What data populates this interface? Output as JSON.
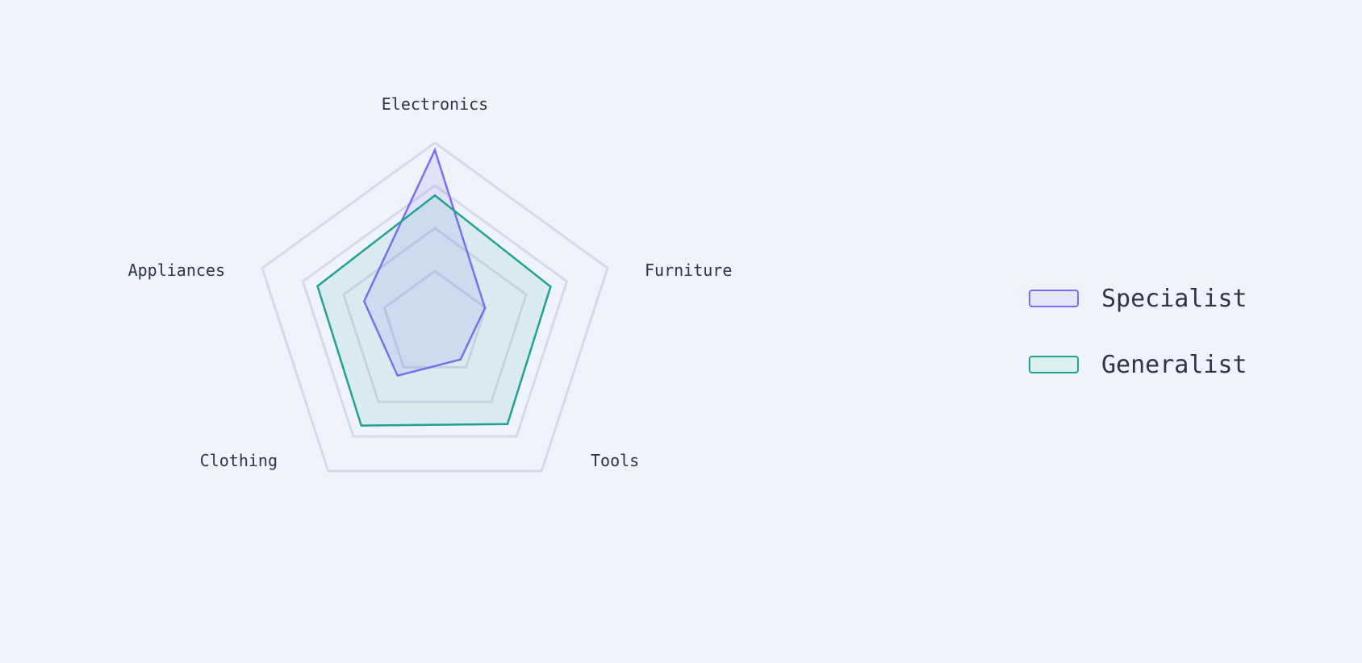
{
  "chart_data": {
    "type": "radar",
    "categories": [
      "Electronics",
      "Furniture",
      "Tools",
      "Clothing",
      "Appliances"
    ],
    "series": [
      {
        "name": "Specialist",
        "values": [
          96,
          29,
          24,
          35,
          41
        ],
        "stroke": "#7b6ef6",
        "fill": "rgba(123,110,246,0.12)",
        "swatch_fill": "#e6e7fc"
      },
      {
        "name": "Generalist",
        "values": [
          71,
          67,
          68,
          69,
          68
        ],
        "stroke": "#21a192",
        "fill": "rgba(33,161,146,0.10)",
        "swatch_fill": "#dff0f0"
      }
    ],
    "rlim": [
      0,
      100
    ],
    "grid": true,
    "grid_color": "#d5d9ea",
    "legend_position": "right",
    "background": "#eff3fb"
  }
}
